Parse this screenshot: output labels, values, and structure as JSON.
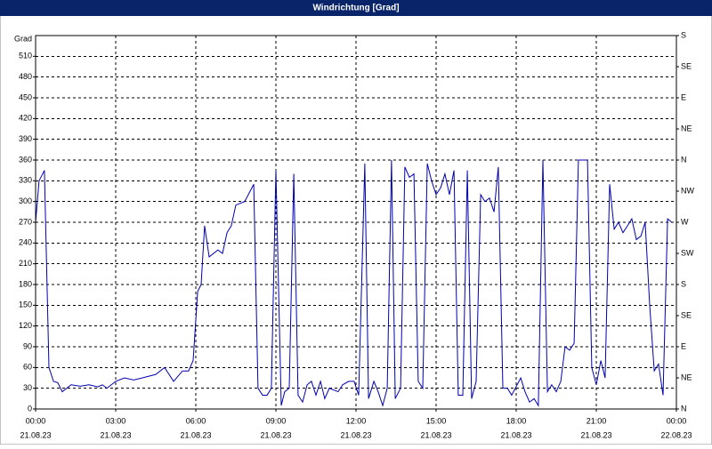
{
  "chart_data": {
    "type": "line",
    "title": "Windrichtung [Grad]",
    "y_label": "Grad",
    "xlim": [
      0,
      24
    ],
    "xticks": [
      {
        "value": 0,
        "label": "00:00",
        "date": "21.08.23"
      },
      {
        "value": 3,
        "label": "03:00",
        "date": "21.08.23"
      },
      {
        "value": 6,
        "label": "06:00",
        "date": "21.08.23"
      },
      {
        "value": 9,
        "label": "09:00",
        "date": "21.08.23"
      },
      {
        "value": 12,
        "label": "12:00",
        "date": "21.08.23"
      },
      {
        "value": 15,
        "label": "15:00",
        "date": "21.08.23"
      },
      {
        "value": 18,
        "label": "18:00",
        "date": "21.08.23"
      },
      {
        "value": 21,
        "label": "21:00",
        "date": "21.08.23"
      },
      {
        "value": 24,
        "label": "00:00",
        "date": "22.08.23"
      }
    ],
    "ylim": [
      0,
      540
    ],
    "yticks": [
      0,
      30,
      60,
      90,
      120,
      150,
      180,
      210,
      240,
      270,
      300,
      330,
      360,
      390,
      420,
      450,
      480,
      510
    ],
    "y2lim": [
      0,
      540
    ],
    "y2ticks": [
      {
        "value": 0,
        "label": "N"
      },
      {
        "value": 45,
        "label": "NE"
      },
      {
        "value": 90,
        "label": "E"
      },
      {
        "value": 135,
        "label": "SE"
      },
      {
        "value": 180,
        "label": "S"
      },
      {
        "value": 225,
        "label": "SW"
      },
      {
        "value": 270,
        "label": "W"
      },
      {
        "value": 315,
        "label": "NW"
      },
      {
        "value": 360,
        "label": "N"
      },
      {
        "value": 405,
        "label": "NE"
      },
      {
        "value": 450,
        "label": "E"
      },
      {
        "value": 495,
        "label": "SE"
      },
      {
        "value": 540,
        "label": "S"
      }
    ],
    "grid": true,
    "x": [
      0,
      0.13,
      0.33,
      0.5,
      0.67,
      0.83,
      1,
      1.33,
      1.67,
      2,
      2.33,
      2.5,
      2.67,
      3,
      3.33,
      3.67,
      4,
      4.5,
      4.83,
      5.17,
      5.5,
      5.73,
      5.9,
      6.07,
      6.2,
      6.33,
      6.5,
      6.83,
      7,
      7.17,
      7.33,
      7.5,
      7.83,
      8.17,
      8.33,
      8.5,
      8.67,
      8.83,
      9,
      9.2,
      9.33,
      9.5,
      9.67,
      9.83,
      10,
      10.17,
      10.33,
      10.5,
      10.67,
      10.83,
      11,
      11.33,
      11.5,
      11.73,
      11.93,
      12.1,
      12.33,
      12.47,
      12.67,
      12.83,
      13,
      13.17,
      13.33,
      13.47,
      13.67,
      13.83,
      14,
      14.17,
      14.33,
      14.5,
      14.67,
      14.83,
      15,
      15.17,
      15.33,
      15.5,
      15.67,
      15.83,
      16,
      16.17,
      16.33,
      16.5,
      16.67,
      16.83,
      17,
      17.17,
      17.33,
      17.5,
      17.67,
      17.83,
      18.17,
      18.33,
      18.5,
      18.67,
      18.83,
      19,
      19.17,
      19.33,
      19.5,
      19.67,
      19.83,
      20,
      20.17,
      20.33,
      20.5,
      20.67,
      20.83,
      21,
      21.17,
      21.33,
      21.5,
      21.67,
      21.83,
      22,
      22.17,
      22.33,
      22.5,
      22.67,
      22.83,
      23,
      23.17,
      23.33,
      23.5,
      23.67,
      23.83
    ],
    "series": [
      {
        "color": "#0000b0",
        "values": [
          270,
          330,
          345,
          60,
          40,
          38,
          25,
          35,
          33,
          35,
          32,
          35,
          30,
          40,
          45,
          42,
          45,
          50,
          60,
          40,
          55,
          55,
          70,
          170,
          180,
          265,
          220,
          230,
          225,
          255,
          265,
          295,
          300,
          325,
          30,
          20,
          20,
          30,
          345,
          5,
          25,
          30,
          340,
          20,
          10,
          35,
          40,
          20,
          40,
          15,
          30,
          25,
          35,
          40,
          40,
          20,
          355,
          15,
          40,
          25,
          5,
          30,
          360,
          15,
          30,
          350,
          335,
          340,
          40,
          30,
          355,
          330,
          310,
          320,
          340,
          310,
          345,
          20,
          20,
          345,
          15,
          40,
          310,
          300,
          305,
          285,
          350,
          30,
          30,
          20,
          45,
          25,
          10,
          15,
          5,
          360,
          25,
          35,
          25,
          40,
          90,
          85,
          95,
          360,
          360,
          360,
          60,
          35,
          70,
          45,
          325,
          260,
          270,
          255,
          265,
          275,
          245,
          250,
          270,
          150,
          55,
          65,
          20,
          275,
          270
        ]
      }
    ]
  }
}
